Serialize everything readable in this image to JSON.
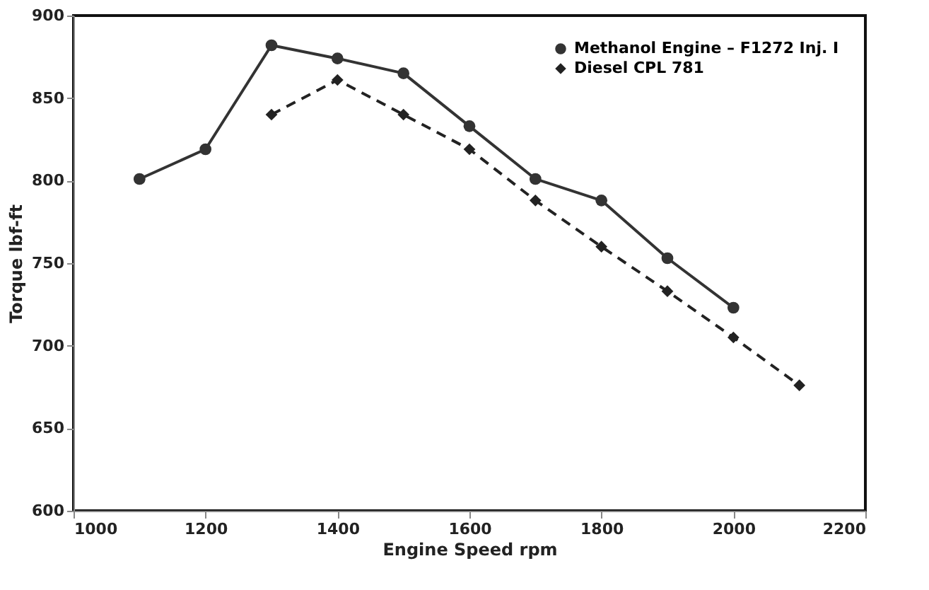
{
  "chart_data": {
    "type": "line",
    "xlabel": "Engine Speed rpm",
    "ylabel": "Torque lbf-ft",
    "xlim": [
      1000,
      2200
    ],
    "xticks": [
      1000,
      1200,
      1400,
      1600,
      1800,
      2000,
      2200
    ],
    "ylim": [
      600,
      900
    ],
    "yticks": [
      600,
      650,
      700,
      750,
      800,
      850,
      900
    ],
    "grid": false,
    "legend": "top right",
    "series": [
      {
        "name": "Methanol Engine – F1272 Inj. I",
        "color": "#333333",
        "marker": "circle",
        "line_style": "solid",
        "x": [
          1100,
          1200,
          1300,
          1400,
          1500,
          1600,
          1700,
          1800,
          1900,
          2000
        ],
        "values": [
          801,
          819,
          882,
          874,
          865,
          833,
          801,
          788,
          753,
          723
        ]
      },
      {
        "name": "Diesel CPL 781",
        "color": "#222222",
        "marker": "diamond",
        "line_style": "dashed",
        "x": [
          1300,
          1400,
          1500,
          1600,
          1700,
          1800,
          1900,
          2000,
          2100
        ],
        "values": [
          840,
          861,
          840,
          819,
          788,
          760,
          733,
          705,
          676
        ]
      }
    ]
  }
}
